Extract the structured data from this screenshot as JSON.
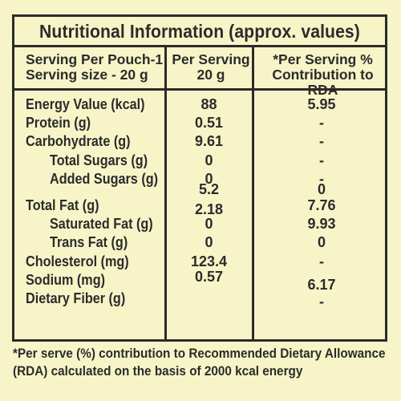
{
  "title": "Nutritional Information (approx. values)",
  "header": {
    "col1_line1": "Serving Per Pouch-1",
    "col1_line2": "Serving size - 20 g",
    "col2_line1": "Per Serving",
    "col2_line2": "20 g",
    "col3_line1": "*Per Serving %",
    "col3_line2": "Contribution to RDA"
  },
  "rows": [
    {
      "name": "Energy Value (kcal)",
      "per": "88",
      "rda": "5.95"
    },
    {
      "name": "Protein (g)",
      "per": "0.51",
      "rda": "-"
    },
    {
      "name": "Carbohydrate (g)",
      "per": "9.61",
      "rda": "-"
    },
    {
      "name": "Total Sugars (g)",
      "per": "0",
      "rda": "-"
    },
    {
      "name": "Added Sugars (g)",
      "per": "0",
      "rda": "-"
    },
    {
      "name": "",
      "per": "5.2",
      "rda": "0"
    },
    {
      "name": "Total Fat (g)",
      "per": "2.18",
      "rda": "7.76"
    },
    {
      "name": "Saturated Fat (g)",
      "per": "0",
      "rda": "9.93"
    },
    {
      "name": "Trans Fat (g)",
      "per": "0",
      "rda": "0"
    },
    {
      "name": "Cholesterol (mg)",
      "per": "123.4",
      "rda": "-"
    },
    {
      "name": "Sodium (mg)",
      "per": "0.57",
      "rda": "6.17"
    },
    {
      "name": "Dietary Fiber (g)",
      "per": "",
      "rda": "-"
    }
  ],
  "footnote": {
    "line1": "*Per serve (%) contribution to Recommended Dietary  Allowance",
    "line2": "(RDA) calculated on the basis of 2000 kcal energy"
  },
  "colors": {
    "background": "#f7f5c8",
    "ink": "#2b2b2b"
  }
}
